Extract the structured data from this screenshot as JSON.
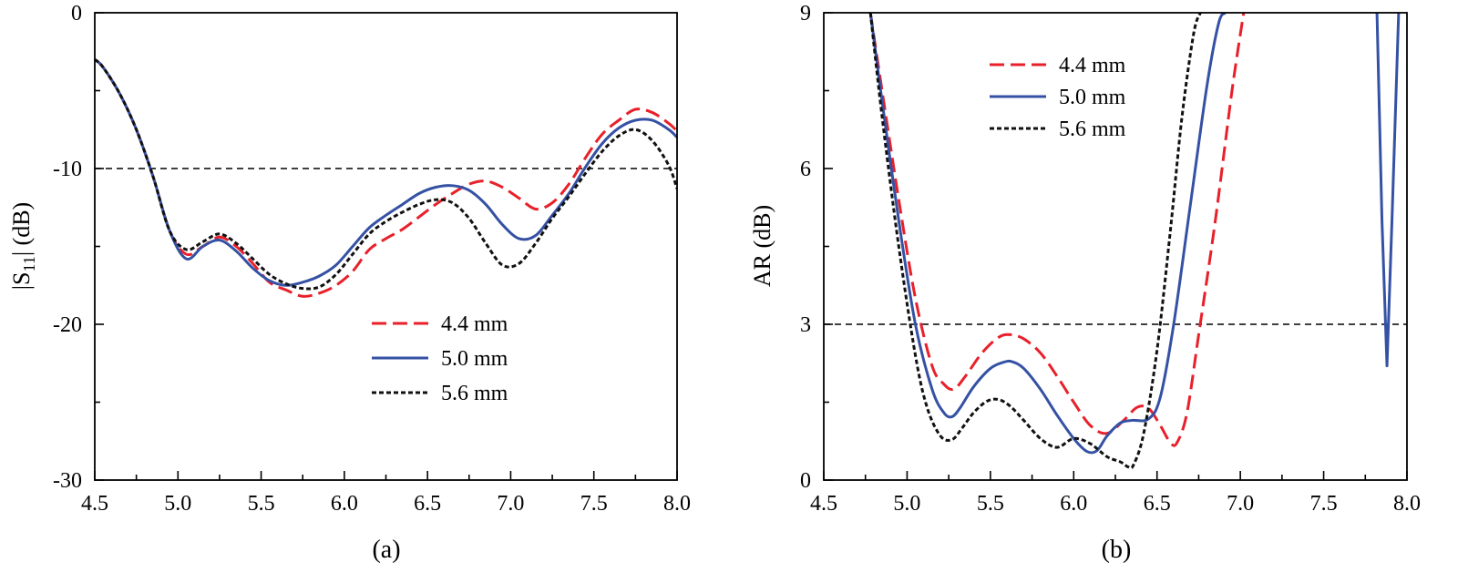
{
  "colors": {
    "red": "#e8202a",
    "blue": "#3551a4",
    "black": "#111111",
    "axis": "#000000"
  },
  "chart_data": [
    {
      "type": "line",
      "id": "a",
      "panel_label": "(a)",
      "ylabel": "|S11| (dB)",
      "ylabel_main": "|S",
      "ylabel_sub": "11",
      "ylabel_tail": "| (dB)",
      "xlabel": "",
      "xlim": [
        4.5,
        8.0
      ],
      "ylim": [
        -30,
        0
      ],
      "xticks": [
        4.5,
        5.0,
        5.5,
        6.0,
        6.5,
        7.0,
        7.5,
        8.0
      ],
      "xtick_labels": [
        "4.5",
        "5.0",
        "5.5",
        "6.0",
        "6.5",
        "7.0",
        "7.5",
        "8.0"
      ],
      "yticks": [
        0,
        -10,
        -20,
        -30
      ],
      "ytick_labels": [
        "0",
        "-10",
        "-20",
        "-30"
      ],
      "reference_line": -10,
      "legend_position": "lower-right",
      "series": [
        {
          "name": "4.4 mm",
          "color_key": "red",
          "dash": "dashed",
          "x": [
            4.5,
            4.55,
            4.65,
            4.75,
            4.85,
            4.95,
            5.05,
            5.15,
            5.25,
            5.35,
            5.45,
            5.55,
            5.65,
            5.75,
            5.85,
            5.95,
            6.05,
            6.15,
            6.25,
            6.35,
            6.45,
            6.55,
            6.65,
            6.75,
            6.85,
            6.95,
            7.05,
            7.15,
            7.25,
            7.35,
            7.45,
            7.55,
            7.65,
            7.75,
            7.85,
            7.95,
            8.0
          ],
          "y": [
            -3.0,
            -3.5,
            -5.2,
            -7.5,
            -10.5,
            -14.0,
            -15.5,
            -15.0,
            -14.4,
            -15.0,
            -16.1,
            -17.3,
            -17.8,
            -18.2,
            -18.0,
            -17.5,
            -16.6,
            -15.2,
            -14.5,
            -13.9,
            -13.1,
            -12.3,
            -11.6,
            -11.0,
            -10.8,
            -11.2,
            -11.9,
            -12.6,
            -12.2,
            -11.0,
            -9.3,
            -7.8,
            -6.9,
            -6.2,
            -6.4,
            -7.1,
            -7.6
          ]
        },
        {
          "name": "5.0 mm",
          "color_key": "blue",
          "dash": "solid",
          "x": [
            4.5,
            4.55,
            4.65,
            4.75,
            4.85,
            4.95,
            5.05,
            5.15,
            5.25,
            5.35,
            5.45,
            5.55,
            5.65,
            5.75,
            5.85,
            5.95,
            6.05,
            6.15,
            6.25,
            6.35,
            6.45,
            6.55,
            6.65,
            6.75,
            6.85,
            6.95,
            7.05,
            7.15,
            7.25,
            7.35,
            7.45,
            7.55,
            7.65,
            7.75,
            7.85,
            7.95,
            8.0
          ],
          "y": [
            -3.0,
            -3.5,
            -5.2,
            -7.5,
            -10.5,
            -14.0,
            -15.8,
            -15.0,
            -14.6,
            -15.3,
            -16.4,
            -17.2,
            -17.5,
            -17.3,
            -16.9,
            -16.2,
            -15.0,
            -13.8,
            -13.0,
            -12.3,
            -11.6,
            -11.2,
            -11.1,
            -11.4,
            -12.3,
            -13.6,
            -14.5,
            -14.3,
            -13.0,
            -11.6,
            -9.9,
            -8.4,
            -7.4,
            -6.9,
            -6.9,
            -7.5,
            -8.0
          ]
        },
        {
          "name": "5.6 mm",
          "color_key": "black",
          "dash": "dotted",
          "x": [
            4.5,
            4.55,
            4.65,
            4.75,
            4.85,
            4.95,
            5.05,
            5.15,
            5.25,
            5.35,
            5.45,
            5.55,
            5.65,
            5.75,
            5.85,
            5.95,
            6.05,
            6.15,
            6.25,
            6.35,
            6.45,
            6.55,
            6.65,
            6.75,
            6.85,
            6.95,
            7.05,
            7.15,
            7.25,
            7.35,
            7.45,
            7.55,
            7.65,
            7.75,
            7.85,
            7.95,
            8.0
          ],
          "y": [
            -3.0,
            -3.5,
            -5.2,
            -7.5,
            -10.5,
            -14.0,
            -15.2,
            -14.7,
            -14.2,
            -14.8,
            -15.8,
            -16.8,
            -17.4,
            -17.7,
            -17.6,
            -16.8,
            -15.5,
            -14.2,
            -13.4,
            -12.8,
            -12.3,
            -12.0,
            -12.2,
            -13.2,
            -14.8,
            -16.2,
            -16.1,
            -14.8,
            -13.2,
            -11.8,
            -10.3,
            -8.9,
            -7.9,
            -7.5,
            -8.2,
            -9.8,
            -11.3
          ]
        }
      ]
    },
    {
      "type": "line",
      "id": "b",
      "panel_label": "(b)",
      "ylabel": "AR (dB)",
      "xlabel": "",
      "xlim": [
        4.5,
        8.0
      ],
      "ylim": [
        0,
        9
      ],
      "xticks": [
        4.5,
        5.0,
        5.5,
        6.0,
        6.5,
        7.0,
        7.5,
        8.0
      ],
      "xtick_labels": [
        "4.5",
        "5.0",
        "5.5",
        "6.0",
        "6.5",
        "7.0",
        "7.5",
        "8.0"
      ],
      "yticks": [
        0,
        3,
        6,
        9
      ],
      "ytick_labels": [
        "0",
        "3",
        "6",
        "9"
      ],
      "reference_line": 3,
      "legend_position": "top-left",
      "series": [
        {
          "name": "4.4 mm",
          "color_key": "red",
          "dash": "dashed",
          "x": [
            4.78,
            4.85,
            4.95,
            5.05,
            5.15,
            5.22,
            5.28,
            5.35,
            5.45,
            5.55,
            5.62,
            5.7,
            5.8,
            5.9,
            6.0,
            6.1,
            6.2,
            6.3,
            6.38,
            6.45,
            6.52,
            6.58,
            6.62,
            6.68,
            6.75,
            6.85,
            6.95,
            7.02
          ],
          "y": [
            9.0,
            7.5,
            5.4,
            3.5,
            2.2,
            1.85,
            1.75,
            2.0,
            2.45,
            2.75,
            2.8,
            2.72,
            2.45,
            2.0,
            1.5,
            1.05,
            0.9,
            1.15,
            1.4,
            1.38,
            1.05,
            0.72,
            0.72,
            1.3,
            2.8,
            5.0,
            7.5,
            9.0
          ]
        },
        {
          "name": "5.0 mm",
          "color_key": "blue",
          "dash": "solid",
          "x": [
            4.78,
            4.85,
            4.95,
            5.05,
            5.15,
            5.22,
            5.27,
            5.32,
            5.4,
            5.5,
            5.58,
            5.63,
            5.7,
            5.8,
            5.9,
            6.0,
            6.08,
            6.14,
            6.2,
            6.28,
            6.35,
            6.45,
            6.52,
            6.6,
            6.7,
            6.8,
            6.87,
            6.91
          ],
          "y": [
            9.0,
            7.3,
            5.0,
            3.0,
            1.75,
            1.3,
            1.22,
            1.4,
            1.8,
            2.15,
            2.27,
            2.28,
            2.15,
            1.75,
            1.25,
            0.8,
            0.55,
            0.57,
            0.85,
            1.1,
            1.15,
            1.18,
            1.6,
            3.0,
            5.3,
            7.6,
            8.8,
            9.0
          ],
          "x2": [
            7.82,
            7.85,
            7.88,
            7.91,
            7.95
          ],
          "y2": [
            9.0,
            5.0,
            2.2,
            5.0,
            9.0
          ]
        },
        {
          "name": "5.6 mm",
          "color_key": "black",
          "dash": "dotted",
          "x": [
            4.78,
            4.85,
            4.95,
            5.05,
            5.12,
            5.2,
            5.27,
            5.33,
            5.4,
            5.48,
            5.55,
            5.62,
            5.7,
            5.8,
            5.9,
            6.0,
            6.1,
            6.2,
            6.28,
            6.33,
            6.36,
            6.42,
            6.5,
            6.58,
            6.65,
            6.72,
            6.76
          ],
          "y": [
            9.0,
            7.0,
            4.5,
            2.4,
            1.4,
            0.85,
            0.78,
            1.0,
            1.3,
            1.52,
            1.55,
            1.42,
            1.15,
            0.8,
            0.63,
            0.8,
            0.7,
            0.45,
            0.35,
            0.25,
            0.3,
            0.9,
            2.5,
            4.8,
            7.0,
            8.6,
            9.0
          ]
        }
      ]
    }
  ]
}
